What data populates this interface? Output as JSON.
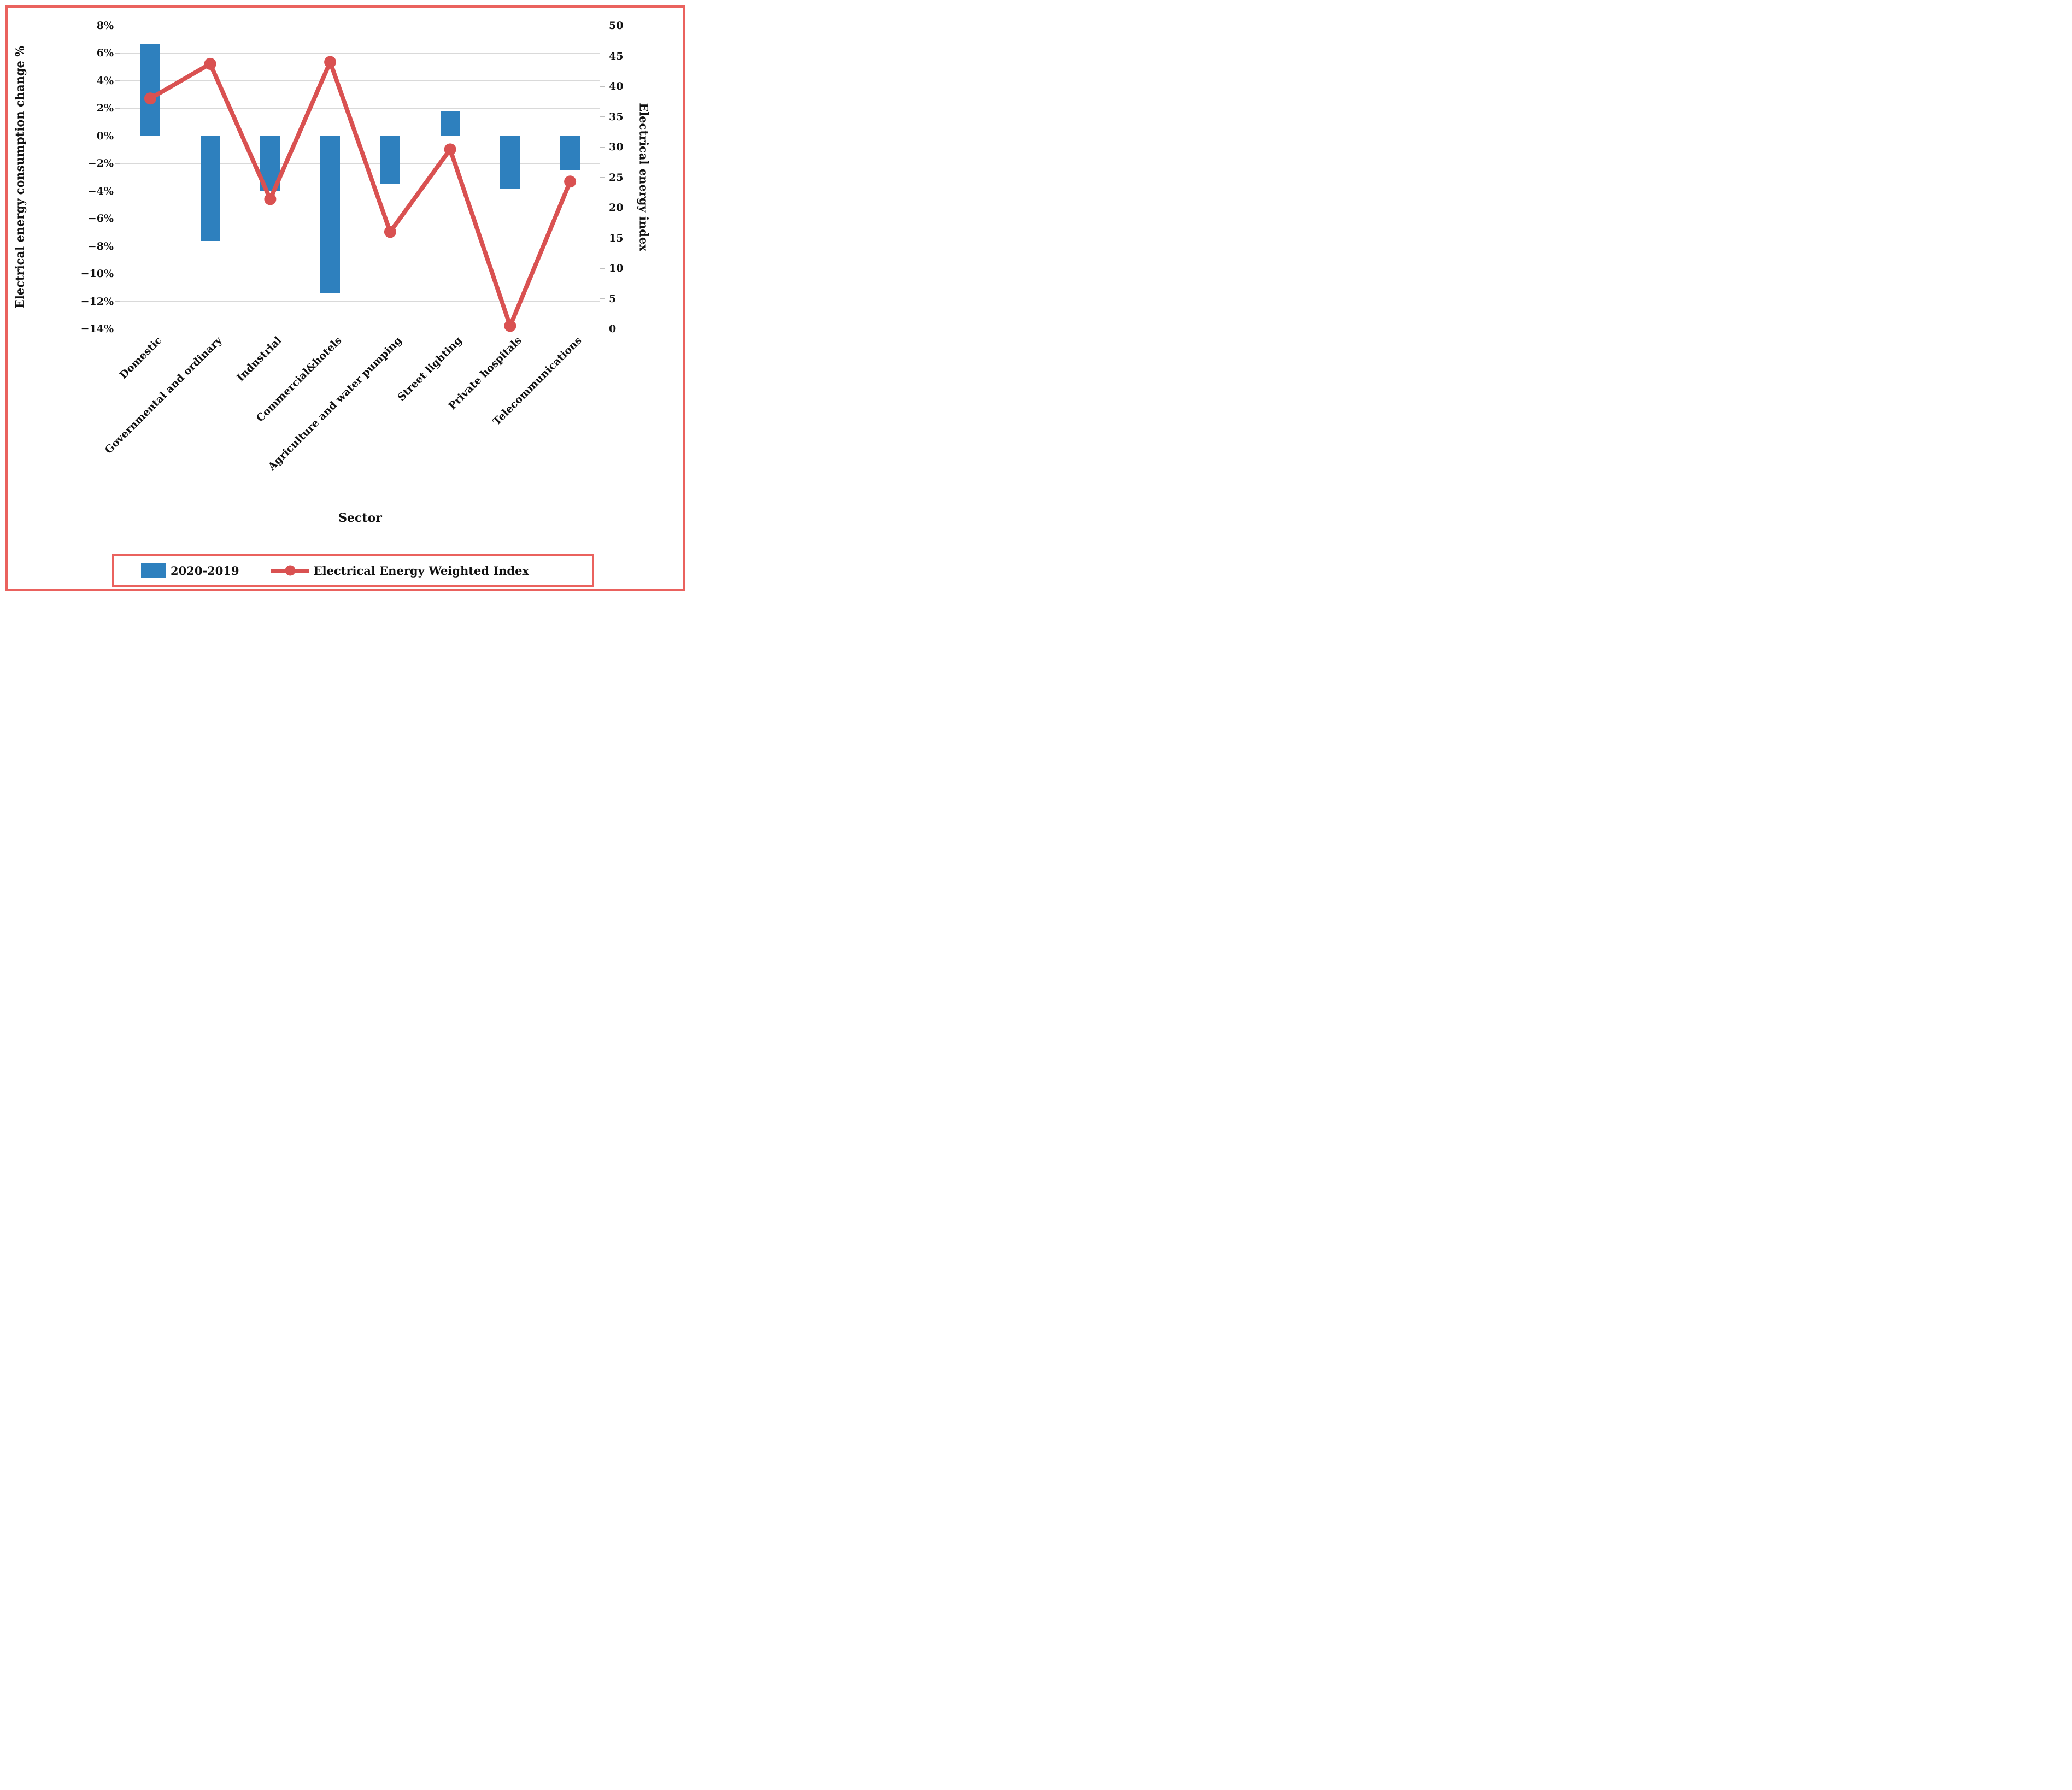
{
  "figure": {
    "background": "#ffffff",
    "border_color": "#ea625e",
    "gridline_color": "#d9d9d9",
    "tick_color": "#bfbfbf"
  },
  "chart_data": {
    "type": "bar+line combo",
    "categories": [
      "Domestic",
      "Governmental and ordinary",
      "Industrial",
      "Commercial&hotels",
      "Agriculture and water pumping",
      "Street lighting",
      "Private hospitals",
      "Telecommunications"
    ],
    "series": [
      {
        "name": "2020-2019",
        "type": "bar",
        "axis": "left",
        "color": "#2e80be",
        "unit": "%",
        "values": [
          6.7,
          -7.6,
          -4.0,
          -11.4,
          -3.5,
          1.8,
          -3.8,
          -2.5
        ]
      },
      {
        "name": "Electrical Energy Weighted Index",
        "type": "line",
        "axis": "right",
        "color": "#d95151",
        "marker": "circle",
        "values": [
          38,
          43.7,
          21.4,
          44,
          16,
          29.6,
          0.5,
          24.3
        ]
      }
    ],
    "left_axis": {
      "title": "Electrical energy consumption change %",
      "min": -14,
      "max": 8,
      "step": 2,
      "format": "percent",
      "tick_labels": [
        "8%",
        "6%",
        "4%",
        "2%",
        "0%",
        "−2%",
        "−4%",
        "−6%",
        "−8%",
        "−10%",
        "−12%",
        "−14%"
      ]
    },
    "right_axis": {
      "title": "Electrical energy index",
      "min": 0,
      "max": 50,
      "step": 5,
      "tick_labels": [
        "50",
        "45",
        "40",
        "35",
        "30",
        "25",
        "20",
        "15",
        "10",
        "5",
        "0"
      ]
    },
    "x_axis": {
      "title": "Sector",
      "label_rotation_deg": 45
    },
    "grid": true,
    "legend": {
      "position": "bottom",
      "border_color": "#ea625e",
      "items": [
        {
          "label": "2020-2019",
          "swatch": "bar-swatch",
          "color": "#2e80be"
        },
        {
          "label": "Electrical Energy Weighted Index",
          "swatch": "line-with-circle-marker",
          "color": "#d95151"
        }
      ]
    }
  }
}
